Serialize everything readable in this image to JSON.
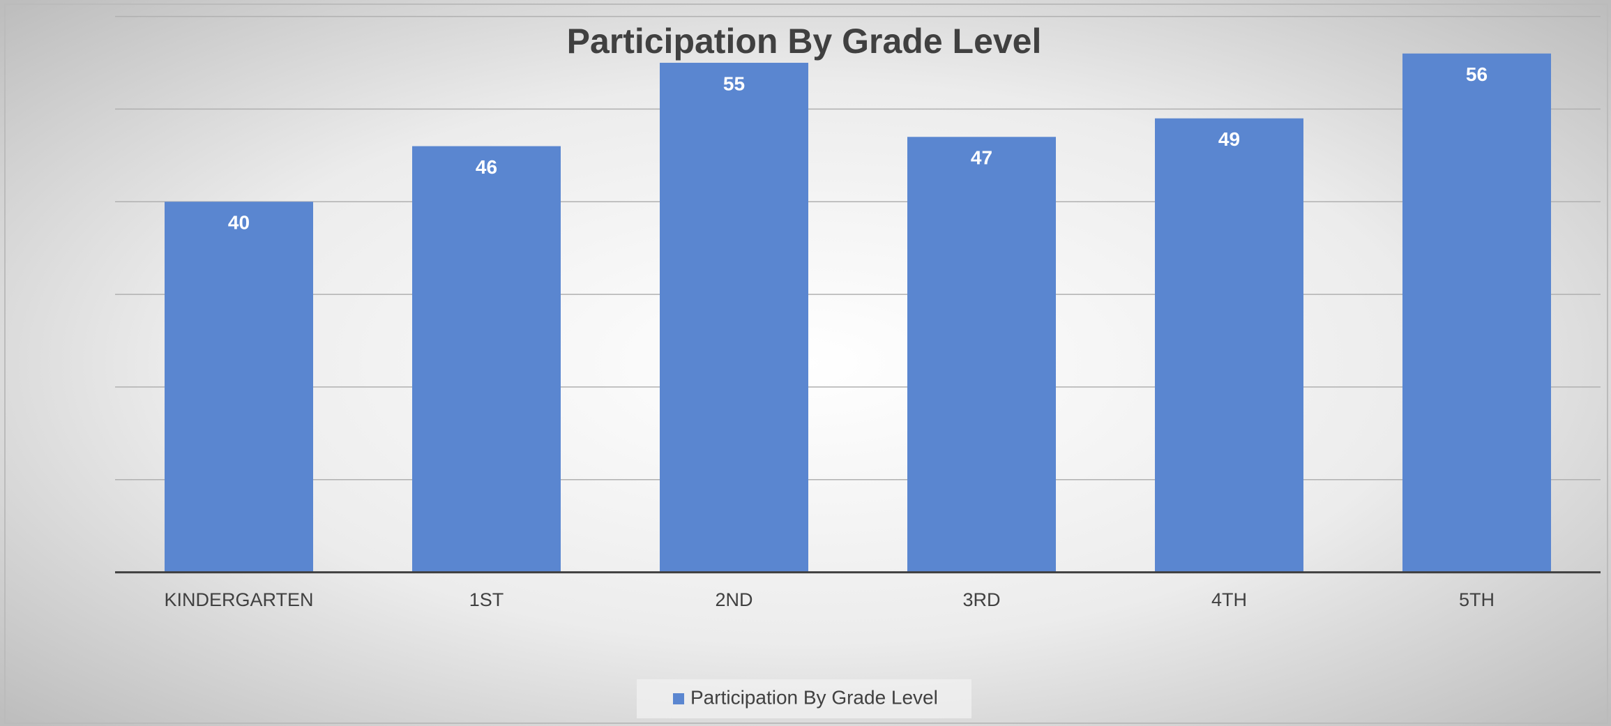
{
  "chart_data": {
    "type": "bar",
    "title": "Participation By Grade Level",
    "categories": [
      "KINDERGARTEN",
      "1ST",
      "2ND",
      "3RD",
      "4TH",
      "5TH"
    ],
    "series": [
      {
        "name": "Participation By Grade Level",
        "color": "#5a86d0",
        "values": [
          40,
          46,
          55,
          47,
          49,
          56
        ]
      }
    ],
    "ylim": [
      0,
      60
    ],
    "yticks": [
      0,
      10,
      20,
      30,
      40,
      50,
      60
    ],
    "grid": true,
    "legend": "bottom"
  }
}
